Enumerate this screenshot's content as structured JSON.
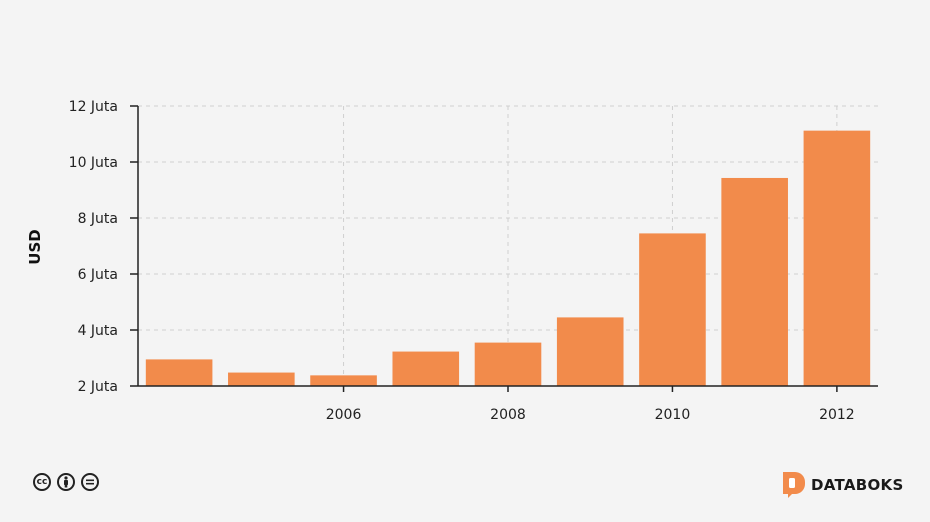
{
  "chart_data": {
    "type": "bar",
    "ylabel": "USD",
    "ylim": [
      2,
      12
    ],
    "yticks": [
      {
        "value": 2,
        "label": "2 Juta"
      },
      {
        "value": 4,
        "label": "4 Juta"
      },
      {
        "value": 6,
        "label": "6 Juta"
      },
      {
        "value": 8,
        "label": "8 Juta"
      },
      {
        "value": 10,
        "label": "10 Juta"
      },
      {
        "value": 12,
        "label": "12 Juta"
      }
    ],
    "xticks": [
      2006,
      2008,
      2010,
      2012
    ],
    "x": [
      2004,
      2005,
      2006,
      2007,
      2008,
      2009,
      2010,
      2011,
      2012
    ],
    "values": [
      2.95,
      2.48,
      2.38,
      3.23,
      3.55,
      4.45,
      7.45,
      9.43,
      11.12
    ],
    "grid": true,
    "bar_color": "#f28b4b"
  },
  "footer": {
    "license_icons": [
      "cc-icon",
      "by-icon",
      "nd-icon"
    ],
    "brand": "DATABOKS",
    "brand_color": "#f28b4b"
  }
}
